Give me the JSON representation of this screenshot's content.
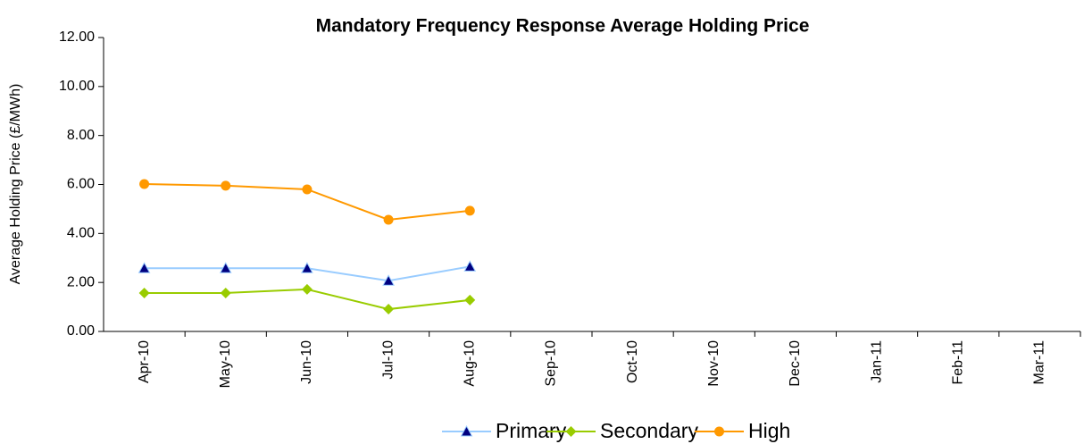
{
  "chart_data": {
    "type": "line",
    "title": "Mandatory Frequency Response Average Holding Price",
    "y_label": "Average Holding Price (£/MWh)",
    "categories": [
      "Apr-10",
      "May-10",
      "Jun-10",
      "Jul-10",
      "Aug-10",
      "Sep-10",
      "Oct-10",
      "Nov-10",
      "Dec-10",
      "Jan-11",
      "Feb-11",
      "Mar-11"
    ],
    "series": [
      {
        "name": "Primary",
        "color": "#99ccff",
        "marker": "triangle",
        "marker_color": "#000080",
        "values": [
          2.58,
          2.58,
          2.58,
          2.07,
          2.65,
          null,
          null,
          null,
          null,
          null,
          null,
          null
        ]
      },
      {
        "name": "Secondary",
        "color": "#99cc00",
        "marker": "diamond",
        "marker_color": "#99cc00",
        "values": [
          1.57,
          1.57,
          1.72,
          0.91,
          1.28,
          null,
          null,
          null,
          null,
          null,
          null,
          null
        ]
      },
      {
        "name": "High",
        "color": "#ff9900",
        "marker": "circle",
        "marker_color": "#ff9900",
        "values": [
          6.02,
          5.95,
          5.8,
          4.56,
          4.93,
          null,
          null,
          null,
          null,
          null,
          null,
          null
        ]
      }
    ],
    "ylim": [
      0,
      12
    ],
    "yticks": [
      {
        "value": 0,
        "label": "0.00"
      },
      {
        "value": 2,
        "label": "2.00"
      },
      {
        "value": 4,
        "label": "4.00"
      },
      {
        "value": 6,
        "label": "6.00"
      },
      {
        "value": 8,
        "label": "8.00"
      },
      {
        "value": 10,
        "label": "10.00"
      },
      {
        "value": 12,
        "label": "12.00"
      }
    ],
    "grid": false,
    "legend": "bottom"
  }
}
